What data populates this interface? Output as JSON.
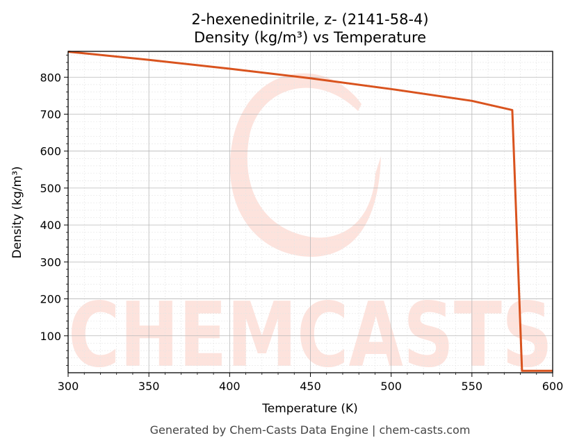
{
  "chart_data": {
    "type": "line",
    "title": "2-hexenedinitrile, z- (2141-58-4)",
    "subtitle": "Density (kg/m³) vs Temperature",
    "xlabel": "Temperature (K)",
    "ylabel": "Density (kg/m³)",
    "xlim": [
      300,
      600
    ],
    "ylim": [
      0,
      870
    ],
    "xticks": [
      300,
      350,
      400,
      450,
      500,
      550,
      600
    ],
    "yticks": [
      100,
      200,
      300,
      400,
      500,
      600,
      700,
      800
    ],
    "grid": true,
    "minor_grid": true,
    "series": [
      {
        "color": "#d9531e",
        "x": [
          300,
          350,
          400,
          450,
          500,
          550,
          575,
          581,
          600
        ],
        "y": [
          869,
          847,
          823,
          797,
          768,
          736,
          711,
          5,
          5
        ]
      }
    ]
  },
  "watermark": {
    "text": "CHEMCASTS",
    "color": "#fde3dd"
  },
  "footer": "Generated by Chem-Casts Data Engine | chem-casts.com"
}
